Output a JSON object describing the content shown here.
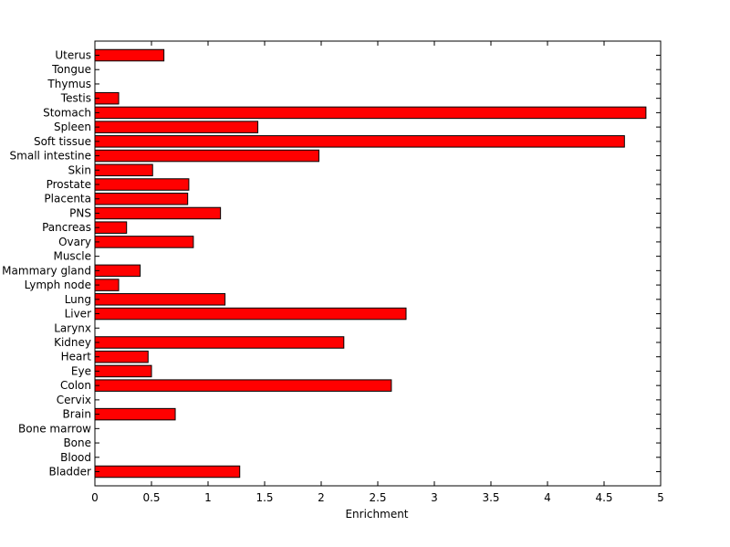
{
  "chart_data": {
    "type": "bar",
    "orientation": "horizontal",
    "title": "",
    "xlabel": "Enrichment",
    "ylabel": "",
    "xlim": [
      0,
      5
    ],
    "xticks": [
      0,
      0.5,
      1,
      1.5,
      2,
      2.5,
      3,
      3.5,
      4,
      4.5,
      5
    ],
    "xtick_labels": [
      "0",
      "0.5",
      "1",
      "1.5",
      "2",
      "2.5",
      "3",
      "3.5",
      "4",
      "4.5",
      "5"
    ],
    "grid": false,
    "bar_color": "#ff0000",
    "bar_edge_color": "#000000",
    "categories": [
      "Bladder",
      "Blood",
      "Bone",
      "Bone marrow",
      "Brain",
      "Cervix",
      "Colon",
      "Eye",
      "Heart",
      "Kidney",
      "Larynx",
      "Liver",
      "Lung",
      "Lymph node",
      "Mammary gland",
      "Muscle",
      "Ovary",
      "Pancreas",
      "PNS",
      "Placenta",
      "Prostate",
      "Skin",
      "Small intestine",
      "Soft tissue",
      "Spleen",
      "Stomach",
      "Testis",
      "Thymus",
      "Tongue",
      "Uterus"
    ],
    "values": [
      1.28,
      0,
      0,
      0,
      0.71,
      0,
      2.62,
      0.5,
      0.47,
      2.2,
      0,
      2.75,
      1.15,
      0.21,
      0.4,
      0,
      0.87,
      0.28,
      1.11,
      0.82,
      0.83,
      0.51,
      1.98,
      4.68,
      1.44,
      4.87,
      0.21,
      0,
      0,
      0.61
    ]
  }
}
